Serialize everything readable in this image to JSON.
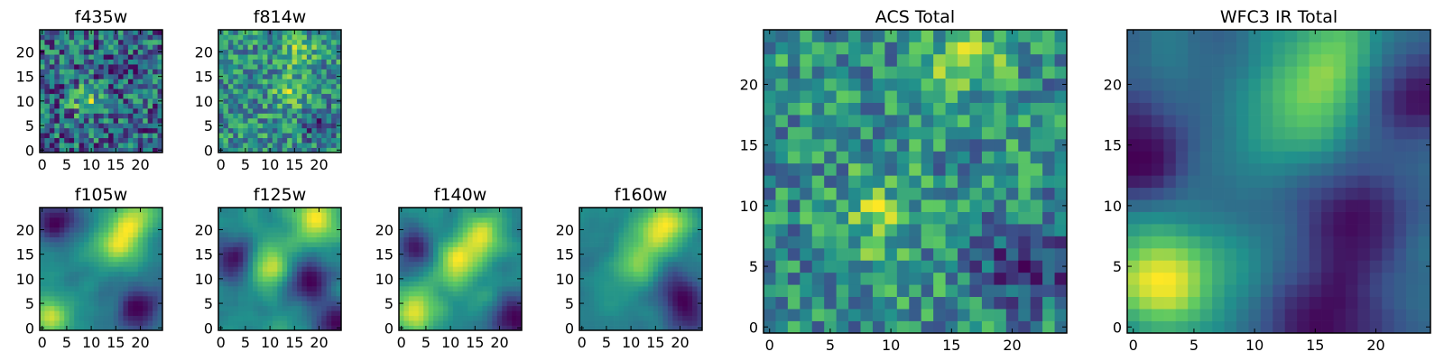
{
  "figure": {
    "colormap": "viridis",
    "colors": [
      "#440154",
      "#3b528b",
      "#21918c",
      "#5ec962",
      "#fde725"
    ],
    "grid": false
  },
  "chart_data": [
    {
      "type": "heatmap",
      "title": "f435w",
      "xlabel": "",
      "ylabel": "",
      "grid_size": [
        25,
        25
      ],
      "xlim": [
        0,
        24
      ],
      "ylim": [
        0,
        24
      ],
      "x_ticks": [
        "0",
        "5",
        "10",
        "15",
        "20"
      ],
      "y_ticks": [
        "0",
        "5",
        "10",
        "15",
        "20"
      ],
      "pattern": "noise",
      "bright_regions": [
        [
          9,
          10
        ]
      ],
      "dark_regions": [],
      "seed": 11
    },
    {
      "type": "heatmap",
      "title": "f814w",
      "xlabel": "",
      "ylabel": "",
      "grid_size": [
        25,
        25
      ],
      "xlim": [
        0,
        24
      ],
      "ylim": [
        0,
        24
      ],
      "x_ticks": [
        "0",
        "5",
        "10",
        "15",
        "20"
      ],
      "y_ticks": [
        "0",
        "5",
        "10",
        "15",
        "20"
      ],
      "pattern": "noise",
      "bright_regions": [
        [
          16,
          20
        ],
        [
          14,
          12
        ]
      ],
      "dark_regions": [
        [
          20,
          5
        ]
      ],
      "seed": 23
    },
    {
      "type": "heatmap",
      "title": "f105w",
      "xlabel": "",
      "ylabel": "",
      "grid_size": [
        25,
        25
      ],
      "xlim": [
        0,
        24
      ],
      "ylim": [
        0,
        24
      ],
      "x_ticks": [
        "0",
        "5",
        "10",
        "15",
        "20"
      ],
      "y_ticks": [
        "0",
        "5",
        "10",
        "15",
        "20"
      ],
      "pattern": "smooth",
      "bright_regions": [
        [
          19,
          22
        ],
        [
          15,
          17
        ],
        [
          2,
          2
        ]
      ],
      "dark_regions": [
        [
          20,
          4
        ],
        [
          2,
          22
        ]
      ],
      "seed": 37
    },
    {
      "type": "heatmap",
      "title": "f125w",
      "xlabel": "",
      "ylabel": "",
      "grid_size": [
        25,
        25
      ],
      "xlim": [
        0,
        24
      ],
      "ylim": [
        0,
        24
      ],
      "x_ticks": [
        "0",
        "5",
        "10",
        "15",
        "20"
      ],
      "y_ticks": [
        "0",
        "5",
        "10",
        "15",
        "20"
      ],
      "pattern": "smooth",
      "bright_regions": [
        [
          19,
          22
        ],
        [
          10,
          13
        ]
      ],
      "dark_regions": [
        [
          18,
          10
        ],
        [
          23,
          1
        ],
        [
          3,
          14
        ]
      ],
      "seed": 41
    },
    {
      "type": "heatmap",
      "title": "f140w",
      "xlabel": "",
      "ylabel": "",
      "grid_size": [
        25,
        25
      ],
      "xlim": [
        0,
        24
      ],
      "ylim": [
        0,
        24
      ],
      "x_ticks": [
        "0",
        "5",
        "10",
        "15",
        "20"
      ],
      "y_ticks": [
        "0",
        "5",
        "10",
        "15",
        "20"
      ],
      "pattern": "smooth",
      "bright_regions": [
        [
          11,
          13
        ],
        [
          16,
          19
        ],
        [
          3,
          3
        ]
      ],
      "dark_regions": [
        [
          3,
          16
        ],
        [
          23,
          2
        ]
      ],
      "seed": 53
    },
    {
      "type": "heatmap",
      "title": "f160w",
      "xlabel": "",
      "ylabel": "",
      "grid_size": [
        25,
        25
      ],
      "xlim": [
        0,
        24
      ],
      "ylim": [
        0,
        24
      ],
      "x_ticks": [
        "0",
        "5",
        "10",
        "15",
        "20"
      ],
      "y_ticks": [
        "0",
        "5",
        "10",
        "15",
        "20"
      ],
      "pattern": "smooth",
      "bright_regions": [
        [
          15,
          19
        ],
        [
          18,
          22
        ],
        [
          11,
          13
        ]
      ],
      "dark_regions": [
        [
          19,
          8
        ],
        [
          22,
          3
        ]
      ],
      "seed": 67
    },
    {
      "type": "heatmap",
      "title": "ACS Total",
      "xlabel": "",
      "ylabel": "",
      "grid_size": [
        25,
        25
      ],
      "xlim": [
        0,
        24
      ],
      "ylim": [
        0,
        24
      ],
      "x_ticks": [
        "0",
        "5",
        "10",
        "15",
        "20"
      ],
      "y_ticks": [
        "0",
        "5",
        "10",
        "15",
        "20"
      ],
      "pattern": "noise",
      "bright_regions": [
        [
          9,
          9
        ],
        [
          16,
          22
        ]
      ],
      "dark_regions": [
        [
          20,
          5
        ],
        [
          24,
          5
        ]
      ],
      "seed": 79
    },
    {
      "type": "heatmap",
      "title": "WFC3 IR Total",
      "xlabel": "",
      "ylabel": "",
      "grid_size": [
        25,
        25
      ],
      "xlim": [
        0,
        24
      ],
      "ylim": [
        0,
        24
      ],
      "x_ticks": [
        "0",
        "5",
        "10",
        "15",
        "20"
      ],
      "y_ticks": [
        "0",
        "5",
        "10",
        "15",
        "20"
      ],
      "pattern": "smooth",
      "bright_regions": [
        [
          17,
          23
        ],
        [
          14,
          18
        ],
        [
          3,
          2
        ],
        [
          2,
          5
        ]
      ],
      "dark_regions": [
        [
          18,
          9
        ],
        [
          23,
          19
        ],
        [
          0,
          14
        ],
        [
          16,
          0
        ]
      ],
      "seed": 97
    }
  ]
}
